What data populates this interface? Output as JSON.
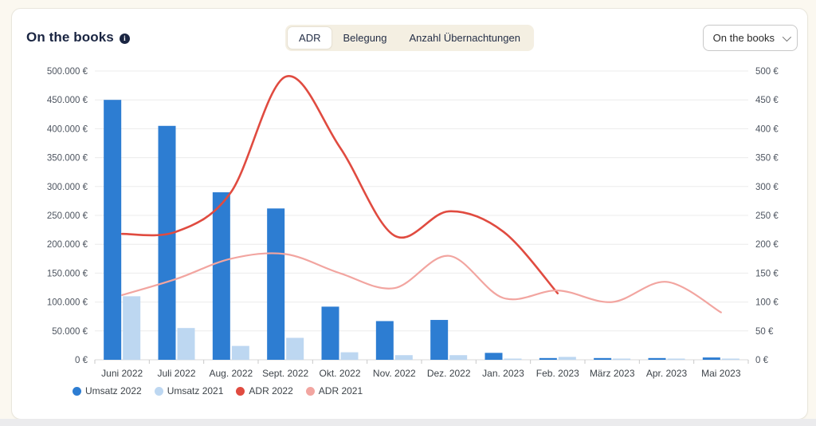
{
  "header": {
    "title": "On the books",
    "tabs": [
      {
        "label": "ADR",
        "active": true
      },
      {
        "label": "Belegung",
        "active": false
      },
      {
        "label": "Anzahl Übernachtungen",
        "active": false
      }
    ],
    "dropdown": {
      "value": "On the books"
    }
  },
  "chart_data": {
    "type": "combo-bar-line",
    "categories": [
      "Juni 2022",
      "Juli 2022",
      "Aug. 2022",
      "Sept. 2022",
      "Okt. 2022",
      "Nov. 2022",
      "Dez. 2022",
      "Jan. 2023",
      "Feb. 2023",
      "März 2023",
      "Apr. 2023",
      "Mai 2023"
    ],
    "series": [
      {
        "name": "Umsatz 2022",
        "type": "bar",
        "axis": "left",
        "color": "#2d7dd2",
        "values": [
          450000,
          405000,
          290000,
          262000,
          92000,
          67000,
          69000,
          12000,
          3000,
          3000,
          3000,
          4000
        ]
      },
      {
        "name": "Umsatz 2021",
        "type": "bar",
        "axis": "left",
        "color": "#bdd7f1",
        "values": [
          110000,
          55000,
          24000,
          38000,
          13000,
          8000,
          8000,
          2000,
          5000,
          1500,
          2000,
          2000
        ]
      },
      {
        "name": "ADR 2022",
        "type": "line",
        "axis": "right",
        "color": "#e04b40",
        "values": [
          218,
          222,
          290,
          490,
          368,
          215,
          257,
          222,
          115,
          null,
          null,
          null
        ]
      },
      {
        "name": "ADR 2021",
        "type": "line",
        "axis": "right",
        "color": "#f2a5a0",
        "values": [
          112,
          140,
          175,
          183,
          150,
          124,
          180,
          107,
          120,
          100,
          135,
          82
        ]
      }
    ],
    "axis_left": {
      "max": 500000,
      "ticks": [
        "500.000 €",
        "450.000 €",
        "400.000 €",
        "350.000 €",
        "300.000 €",
        "250.000 €",
        "200.000 €",
        "150.000 €",
        "100.000 €",
        "50.000 €",
        "0 €"
      ]
    },
    "axis_right": {
      "max": 500,
      "ticks": [
        "500 €",
        "450 €",
        "400 €",
        "350 €",
        "300 €",
        "250 €",
        "200 €",
        "150 €",
        "100 €",
        "50 €",
        "0 €"
      ]
    },
    "grid": true,
    "legend_position": "bottom"
  }
}
